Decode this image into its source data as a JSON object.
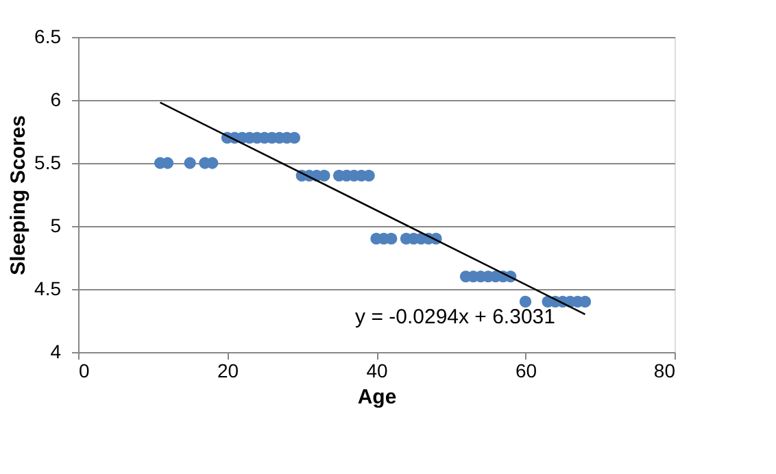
{
  "chart_data": {
    "type": "scatter",
    "xlabel": "Age",
    "ylabel": "Sleeping Scores",
    "xlim": [
      0,
      80
    ],
    "xticks": [
      0,
      20,
      40,
      60,
      80
    ],
    "ylim": [
      4,
      6.5
    ],
    "yticks": [
      4,
      {
        "value": 4.5,
        "label": "4.5"
      },
      5,
      {
        "value": 5.5,
        "label": "5.5"
      },
      6,
      {
        "value": 6.5,
        "label": "6.5"
      }
    ],
    "grid": "y",
    "series": [
      {
        "color": "#4f81bd",
        "marker": "circle",
        "x": [
          11,
          12,
          15,
          17,
          18,
          20,
          21,
          22,
          23,
          24,
          25,
          26,
          27,
          28,
          29,
          30,
          31,
          32,
          33,
          35,
          36,
          37,
          38,
          39,
          40,
          41,
          42,
          44,
          45,
          46,
          47,
          48,
          52,
          53,
          54,
          55,
          56,
          57,
          58,
          60,
          63,
          64,
          65,
          66,
          67,
          68
        ],
        "values": [
          5.5,
          5.5,
          5.5,
          5.5,
          5.5,
          5.7,
          5.7,
          5.7,
          5.7,
          5.7,
          5.7,
          5.7,
          5.7,
          5.7,
          5.7,
          5.4,
          5.4,
          5.4,
          5.4,
          5.4,
          5.4,
          5.4,
          5.4,
          5.4,
          4.9,
          4.9,
          4.9,
          4.9,
          4.9,
          4.9,
          4.9,
          4.9,
          4.6,
          4.6,
          4.6,
          4.6,
          4.6,
          4.6,
          4.6,
          4.4,
          4.4,
          4.4,
          4.4,
          4.4,
          4.4,
          4.4
        ]
      },
      {
        "type": "line",
        "color": "#000000",
        "x": [
          11,
          68
        ],
        "values": [
          5.98,
          4.3
        ]
      }
    ],
    "annotations": [
      "y = -0.0294x + 6.3031"
    ]
  }
}
